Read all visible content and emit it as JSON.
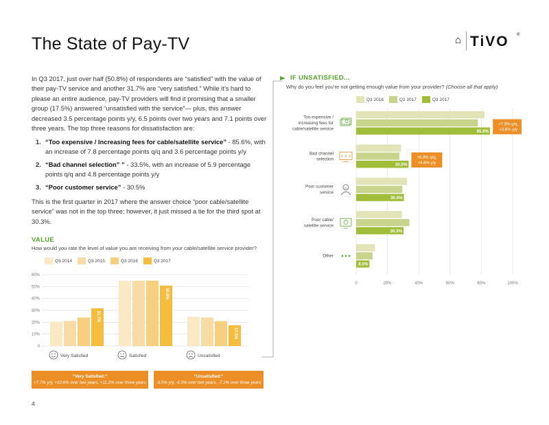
{
  "header": {
    "title": "The State of Pay-TV",
    "logo_text": "TiVO",
    "logo_mark": "⌂",
    "logo_reg": "®"
  },
  "intro": {
    "paragraph": "In Q3 2017, just over half (50.8%) of respondents are “satisfied” with the value of their pay-TV service and another 31.7% are “very satisfied.” While it’s hard to please an entire audience, pay-TV providers will find it promising that a smaller group (17.5%) answered “unsatisfied with the service”— plus, this answer decreased 3.5 percentage points y/y, 6.5 points over two years and 7.1 points over three years. The top three reasons for dissatisfaction are:",
    "reasons": [
      {
        "num": "1.",
        "bold": "“Too expensive / Increasing fees for cable/satellite service”",
        "rest": " - 85.6%, with an increase of 7.8 percentage points q/q and 3.6 percentage points y/y"
      },
      {
        "num": "2.",
        "bold": "“Bad channel selection” ”",
        "rest": " - 33.5%, with an increase of 5.9 percentage points q/q and 4.8 percentage points y/y"
      },
      {
        "num": "3.",
        "bold": "“Poor customer service”",
        "rest": " - 30.5%"
      }
    ],
    "footnote": "This is the first quarter in 2017 where the answer choice “poor cable/satellite service” was not in the top three; however, it just missed a tie for the third spot at 30.3%."
  },
  "value_section": {
    "title": "VALUE",
    "question": "How would you rate the level of value you are receiving from your cable/satellite service provider?",
    "callouts": [
      {
        "title": "“Very Satisfied:”",
        "detail": "+7.7% y/y, +10.6% over two years, +11.2% over three years"
      },
      {
        "title": "“Unsatisfied:”",
        "detail": "-3.5% y/y, -6.5% over two years, -7.1% over three years"
      }
    ]
  },
  "unsat_section": {
    "title": "IF UNSATISFIED...",
    "question": "Why do you feel you’re not getting enough value from your provider?",
    "question_note": "(Choose all that apply)"
  },
  "page_number": "4",
  "colors": {
    "accent_green": "#5aa22d",
    "callout_orange": "#ec8f27",
    "value_series": [
      "#fbe9c6",
      "#f9dca4",
      "#f8cf7f",
      "#f6bd3c"
    ],
    "unsat_series": [
      "#e2e4b7",
      "#c8d48b",
      "#a1be3a"
    ]
  },
  "chart_data": [
    {
      "type": "bar",
      "orientation": "vertical",
      "categories": [
        "Very Satisfied",
        "Satisfied",
        "Unsatisfied"
      ],
      "category_icons": [
        "happy-face-icon",
        "neutral-face-icon",
        "sad-face-icon"
      ],
      "series": [
        {
          "name": "Q3 2014",
          "values": [
            20.5,
            54.9,
            24.6
          ]
        },
        {
          "name": "Q3 2015",
          "values": [
            21.1,
            54.9,
            24.0
          ]
        },
        {
          "name": "Q3 2016",
          "values": [
            24.0,
            55.0,
            21.0
          ]
        },
        {
          "name": "Q3 2017",
          "values": [
            31.7,
            50.8,
            17.5
          ]
        }
      ],
      "data_labels": [
        "31.7%",
        "50.8%",
        "17.5%"
      ],
      "yticks": [
        "0",
        "10%",
        "20%",
        "30%",
        "40%",
        "50%",
        "60%"
      ],
      "ylim": [
        0,
        60
      ],
      "grid": true,
      "legend": "top-left"
    },
    {
      "type": "bar",
      "orientation": "horizontal",
      "categories": [
        "Too expensive / increasing fees for cable/satellite service",
        "Bad channel selection",
        "Poor customer service",
        "Poor cable/ satellite service",
        "Other"
      ],
      "category_lines": [
        [
          "Too expensive /",
          "increasing fees for",
          "cable/satellite service"
        ],
        [
          "Bad channel",
          "selection"
        ],
        [
          "Poor customer",
          "service"
        ],
        [
          "Poor cable/",
          "satellite service"
        ],
        [
          "Other"
        ]
      ],
      "category_icons": [
        "money-icon",
        "tv-channels-icon",
        "customer-service-icon",
        "satellite-icon",
        "ellipsis-icon"
      ],
      "series": [
        {
          "name": "Q3 2016",
          "values": [
            82.0,
            28.7,
            32.5,
            29.2,
            12.0
          ]
        },
        {
          "name": "Q2 2017",
          "values": [
            77.8,
            27.6,
            29.5,
            34.0,
            10.5
          ]
        },
        {
          "name": "Q3 2017",
          "values": [
            85.6,
            33.5,
            30.5,
            30.3,
            8.5
          ]
        }
      ],
      "data_labels": [
        "85.6%",
        "33.5%",
        "30.5%",
        "30.3%",
        "8.5%"
      ],
      "annotations": [
        {
          "category": "Too expensive / increasing fees for cable/satellite service",
          "lines": [
            "+7.8% q/q,",
            "+3.6% y/y"
          ]
        },
        {
          "category": "Bad channel selection",
          "lines": [
            "+5.9% q/q,",
            "+4.8% y/y"
          ]
        }
      ],
      "xticks": [
        "0",
        "20%",
        "40%",
        "60%",
        "80%",
        "100%"
      ],
      "xlim": [
        0,
        100
      ],
      "grid": true,
      "legend": "top"
    }
  ]
}
